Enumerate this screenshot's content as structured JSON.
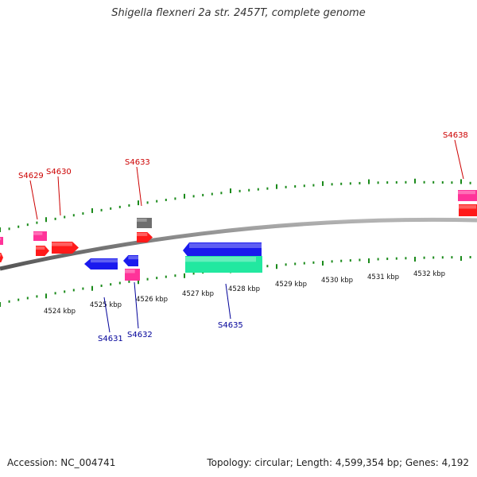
{
  "title": "Shigella flexneri 2a str. 2457T, complete genome",
  "footer": {
    "accession": "Accession: NC_004741",
    "summary": "Topology: circular; Length: 4,599,354 bp; Genes: 4,192"
  },
  "colors": {
    "backbone": "#8a8a8a",
    "tick": "#1a8a1a",
    "forward_label": "#cc0000",
    "reverse_label": "#000099",
    "gene_red": "#ff1a1a",
    "gene_pink": "#ff3399",
    "gene_gray": "#6e6e6e",
    "gene_blue": "#1a1aee",
    "gene_green": "#22e8a0"
  },
  "scale_labels": [
    "4524 kbp",
    "4525 kbp",
    "4526 kbp",
    "4527 kbp",
    "4528 kbp",
    "4529 kbp",
    "4530 kbp",
    "4531 kbp",
    "4532 kbp"
  ],
  "gene_labels": [
    {
      "text": "S4629",
      "strand": "forward"
    },
    {
      "text": "S4630",
      "strand": "forward"
    },
    {
      "text": "S4633",
      "strand": "forward"
    },
    {
      "text": "S4638",
      "strand": "forward"
    },
    {
      "text": "S4631",
      "strand": "reverse"
    },
    {
      "text": "S4632",
      "strand": "reverse"
    },
    {
      "text": "S4635",
      "strand": "reverse"
    }
  ]
}
